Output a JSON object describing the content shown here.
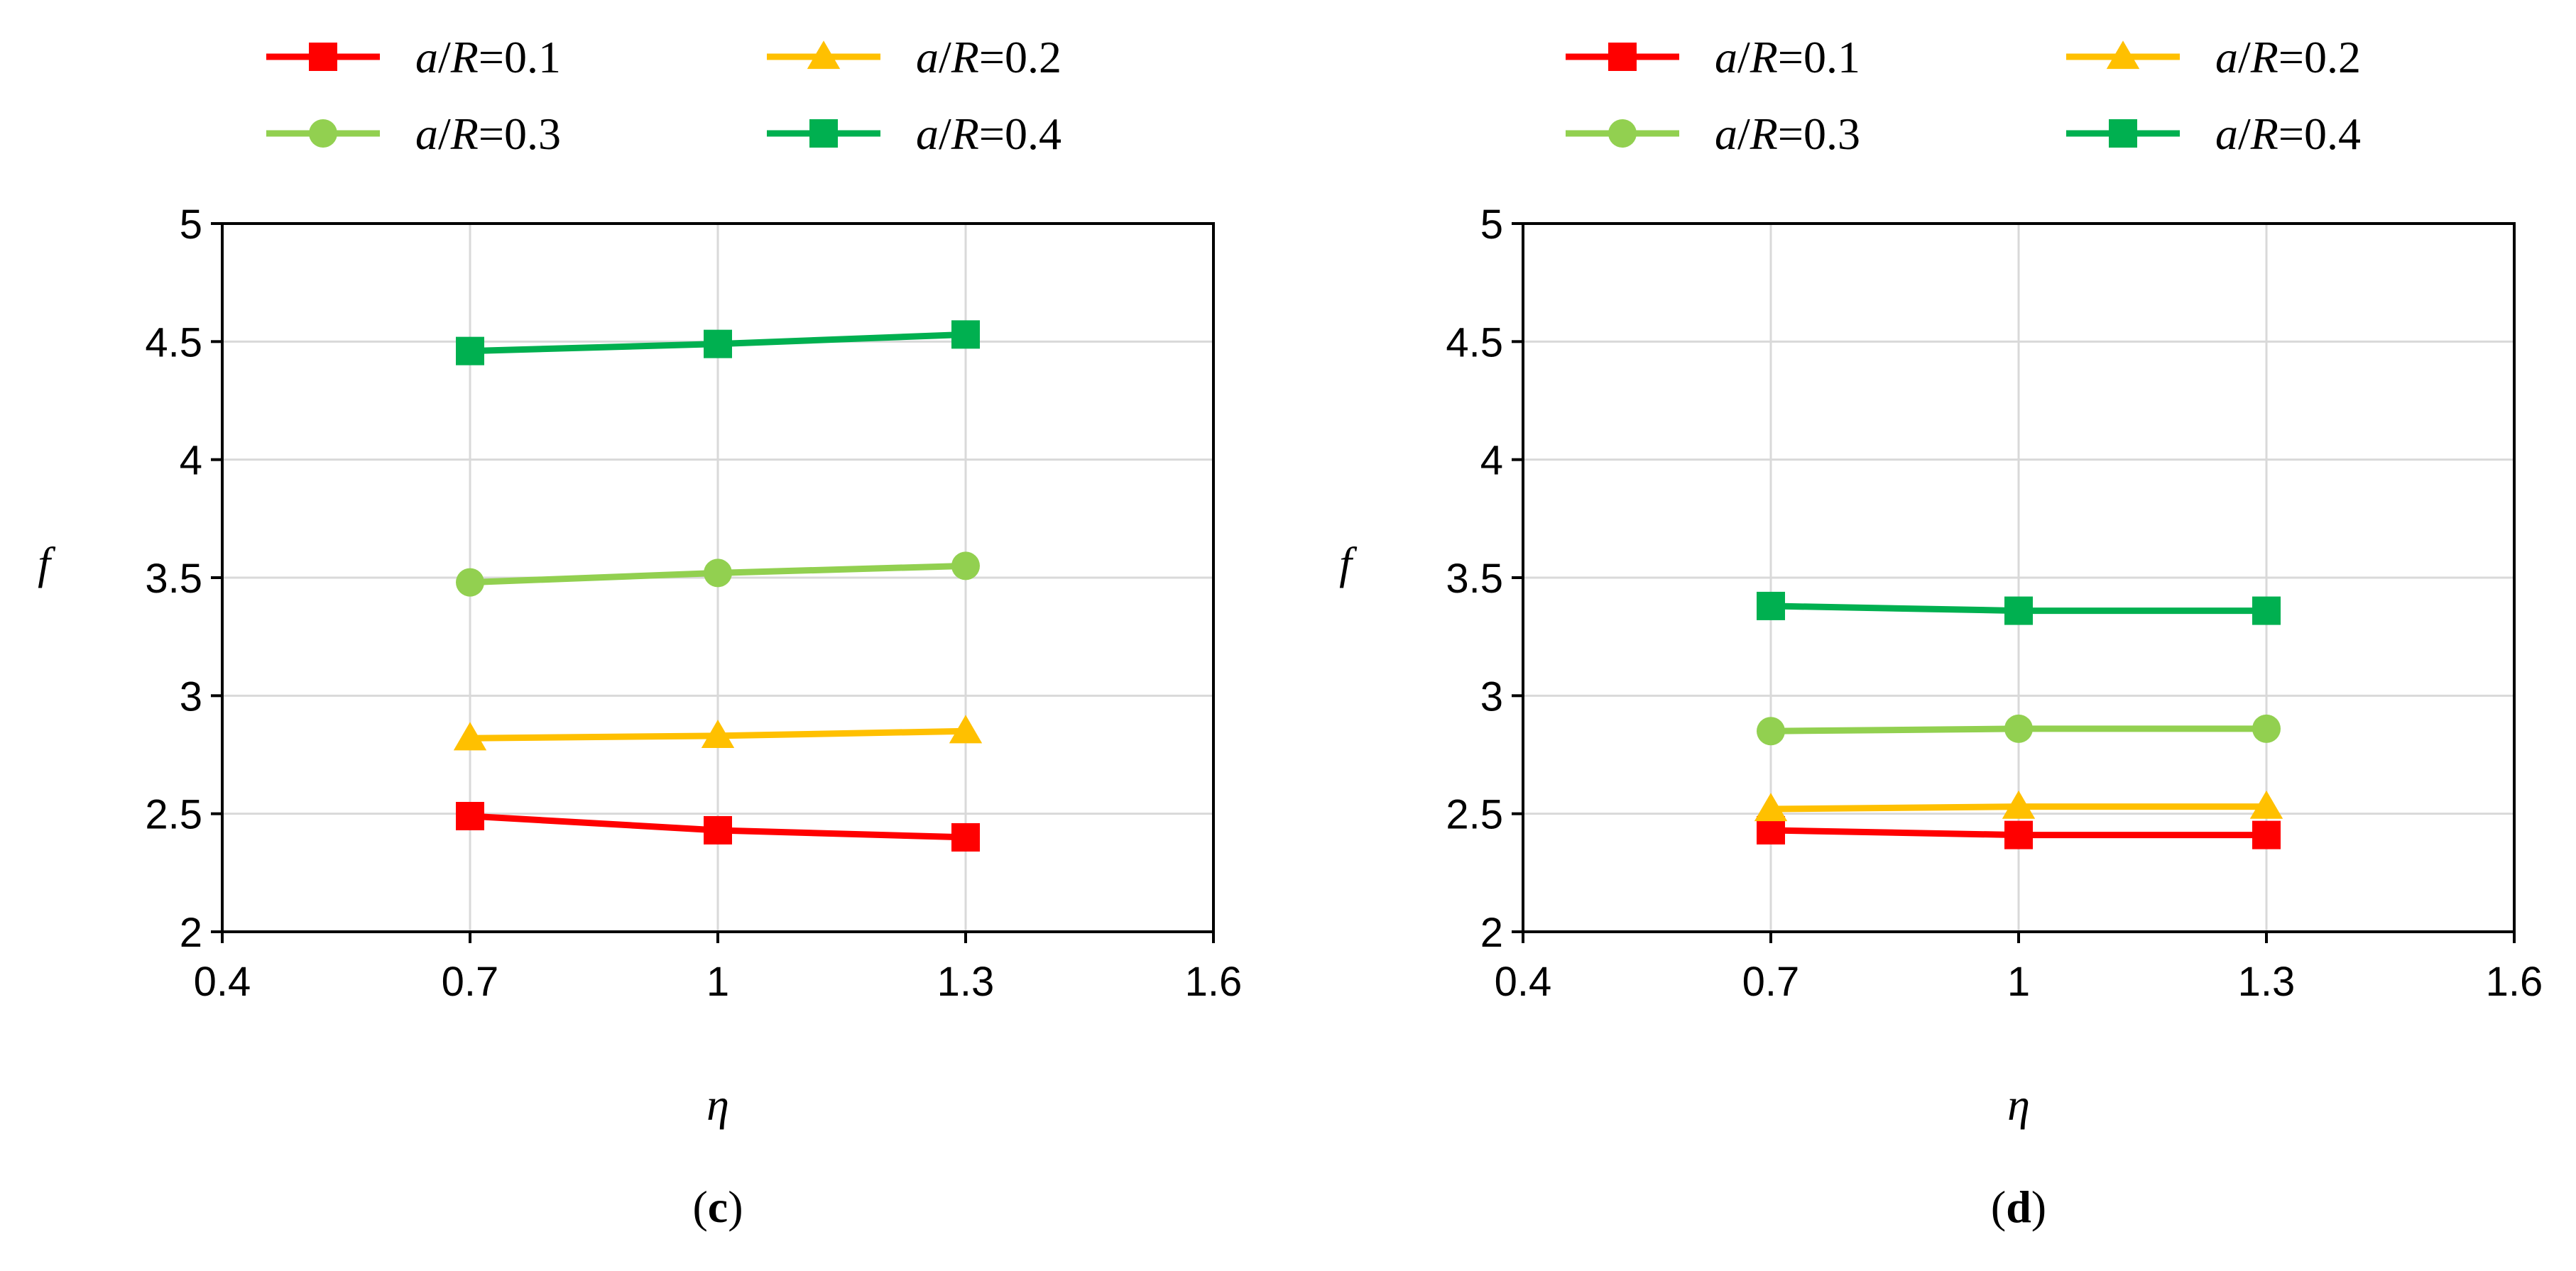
{
  "chart_data": [
    {
      "type": "line",
      "panel_label": {
        "open": "(",
        "letter": "c",
        "close": ")"
      },
      "xlabel": "η",
      "ylabel": "f",
      "xlim": [
        0.4,
        1.6
      ],
      "ylim": [
        2,
        5
      ],
      "xticks": [
        "0.4",
        "0.7",
        "1",
        "1.3",
        "1.6"
      ],
      "yticks": [
        "2",
        "2.5",
        "3",
        "3.5",
        "4",
        "4.5",
        "5"
      ],
      "grid": true,
      "x": [
        0.7,
        1.0,
        1.3
      ],
      "series": [
        {
          "name": "a/R=0.1",
          "name_var": "a/R",
          "name_val": "=0.1",
          "color": "#ff0000",
          "marker": "square",
          "values": [
            2.49,
            2.43,
            2.4
          ]
        },
        {
          "name": "a/R=0.2",
          "name_var": "a/R",
          "name_val": "=0.2",
          "color": "#ffc000",
          "marker": "triangle",
          "values": [
            2.82,
            2.83,
            2.85
          ]
        },
        {
          "name": "a/R=0.3",
          "name_var": "a/R",
          "name_val": "=0.3",
          "color": "#92d050",
          "marker": "circle",
          "values": [
            3.48,
            3.52,
            3.55
          ]
        },
        {
          "name": "a/R=0.4",
          "name_var": "a/R",
          "name_val": "=0.4",
          "color": "#00b050",
          "marker": "square",
          "values": [
            4.46,
            4.49,
            4.53
          ]
        }
      ]
    },
    {
      "type": "line",
      "panel_label": {
        "open": "(",
        "letter": "d",
        "close": ")"
      },
      "xlabel": "η",
      "ylabel": "f",
      "xlim": [
        0.4,
        1.6
      ],
      "ylim": [
        2,
        5
      ],
      "xticks": [
        "0.4",
        "0.7",
        "1",
        "1.3",
        "1.6"
      ],
      "yticks": [
        "2",
        "2.5",
        "3",
        "3.5",
        "4",
        "4.5",
        "5"
      ],
      "grid": true,
      "x": [
        0.7,
        1.0,
        1.3
      ],
      "series": [
        {
          "name": "a/R=0.1",
          "name_var": "a/R",
          "name_val": "=0.1",
          "color": "#ff0000",
          "marker": "square",
          "values": [
            2.43,
            2.41,
            2.41
          ]
        },
        {
          "name": "a/R=0.2",
          "name_var": "a/R",
          "name_val": "=0.2",
          "color": "#ffc000",
          "marker": "triangle",
          "values": [
            2.52,
            2.53,
            2.53
          ]
        },
        {
          "name": "a/R=0.3",
          "name_var": "a/R",
          "name_val": "=0.3",
          "color": "#92d050",
          "marker": "circle",
          "values": [
            2.85,
            2.86,
            2.86
          ]
        },
        {
          "name": "a/R=0.4",
          "name_var": "a/R",
          "name_val": "=0.4",
          "color": "#00b050",
          "marker": "square",
          "values": [
            3.38,
            3.36,
            3.36
          ]
        }
      ]
    }
  ]
}
